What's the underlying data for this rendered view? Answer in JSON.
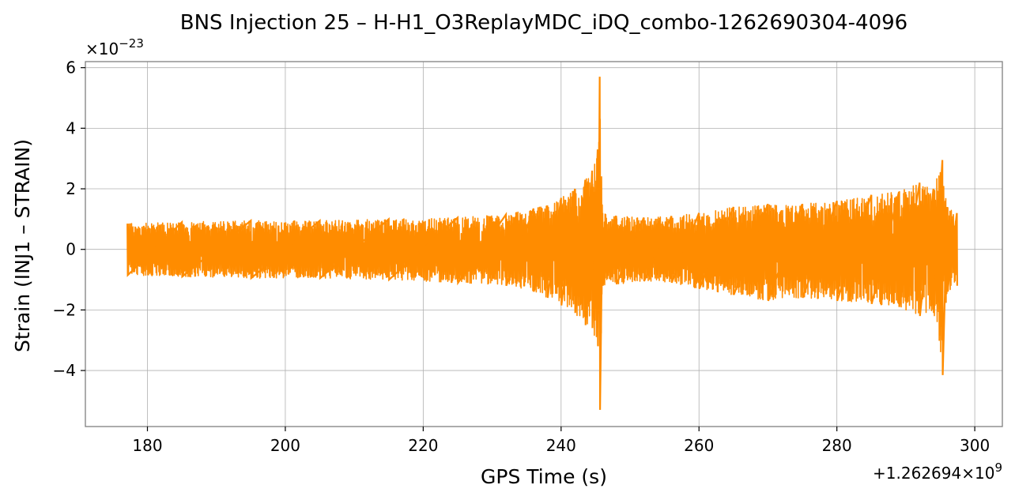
{
  "chart_data": {
    "type": "line",
    "title": "BNS Injection 25 – H-H1_O3ReplayMDC_iDQ_combo-1262690304-4096",
    "xlabel": "GPS Time (s)",
    "ylabel": "Strain (INJ1 – STRAIN)",
    "x_offset_label": "+1.262694×10",
    "x_offset_exp": "9",
    "y_scale_label": "×10",
    "y_scale_exp": "−23",
    "xlim": [
      171,
      304
    ],
    "ylim": [
      -5.85,
      6.2
    ],
    "xticks": [
      180,
      200,
      220,
      240,
      260,
      280,
      300
    ],
    "xtick_labels": [
      "180",
      "200",
      "220",
      "240",
      "260",
      "280",
      "300"
    ],
    "yticks": [
      -4,
      -2,
      0,
      2,
      4,
      6
    ],
    "ytick_labels": [
      "−4",
      "−2",
      "0",
      "2",
      "4",
      "6"
    ],
    "grid": true,
    "series": [
      {
        "color": "#ff8c00",
        "x_start": 177.1,
        "x_end": 297.4,
        "envelope": {
          "x": [
            177.1,
            185,
            195,
            205,
            215,
            225,
            232,
            236,
            238,
            240,
            242,
            243.5,
            244.5,
            245.3,
            245.6,
            246,
            248,
            252,
            256,
            260,
            265,
            270,
            275,
            280,
            285,
            289,
            292,
            294,
            295.3,
            296,
            297.4
          ],
          "upper": [
            0.85,
            0.9,
            0.95,
            0.95,
            1.0,
            1.05,
            1.15,
            1.35,
            1.45,
            1.7,
            2.0,
            2.3,
            2.6,
            3.3,
            5.7,
            1.2,
            1.1,
            1.05,
            1.1,
            1.2,
            1.4,
            1.5,
            1.5,
            1.6,
            1.8,
            1.9,
            2.2,
            2.0,
            2.95,
            1.4,
            1.2
          ],
          "lower": [
            -0.85,
            -0.9,
            -0.95,
            -0.95,
            -1.0,
            -1.1,
            -1.2,
            -1.4,
            -1.6,
            -1.85,
            -2.1,
            -2.5,
            -2.6,
            -3.2,
            -5.3,
            -1.2,
            -1.15,
            -1.05,
            -1.1,
            -1.3,
            -1.5,
            -1.7,
            -1.6,
            -1.7,
            -1.8,
            -1.9,
            -2.2,
            -2.1,
            -4.15,
            -1.4,
            -1.2
          ]
        }
      }
    ]
  }
}
